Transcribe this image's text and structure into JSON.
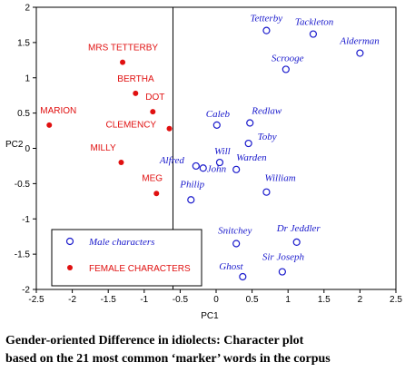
{
  "chart_data": {
    "type": "scatter",
    "xlabel": "PC1",
    "ylabel": "PC2",
    "xlim": [
      -2.5,
      2.5
    ],
    "ylim": [
      -2,
      2
    ],
    "xticks": [
      "-2.5",
      "-2",
      "-1.5",
      "-1",
      "-0.5",
      "0",
      "0.5",
      "1",
      "1.5",
      "2",
      "2.5"
    ],
    "yticks": [
      "2",
      "1.5",
      "1",
      "0.5",
      "0",
      "-0.5",
      "-1",
      "-1.5",
      "-2"
    ],
    "vline_x": -0.6,
    "colors": {
      "male": "#1a1acc",
      "female": "#e01010"
    },
    "series": [
      {
        "name": "Male characters",
        "marker": "open-circle",
        "points": [
          {
            "label": "Tetterby",
            "x": 0.7,
            "y": 1.67
          },
          {
            "label": "Tackleton",
            "x": 1.35,
            "y": 1.62
          },
          {
            "label": "Alderman",
            "x": 2.0,
            "y": 1.35
          },
          {
            "label": "Scrooge",
            "x": 0.97,
            "y": 1.12
          },
          {
            "label": "Caleb",
            "x": 0.01,
            "y": 0.33
          },
          {
            "label": "Redlaw",
            "x": 0.47,
            "y": 0.36
          },
          {
            "label": "Toby",
            "x": 0.45,
            "y": 0.07
          },
          {
            "label": "Will",
            "x": 0.05,
            "y": -0.2
          },
          {
            "label": "Warden",
            "x": 0.28,
            "y": -0.3
          },
          {
            "label": "Alfred",
            "x": -0.28,
            "y": -0.25
          },
          {
            "label": "John",
            "x": -0.18,
            "y": -0.28
          },
          {
            "label": "Philip",
            "x": -0.35,
            "y": -0.73
          },
          {
            "label": "William",
            "x": 0.7,
            "y": -0.62
          },
          {
            "label": "Snitchey",
            "x": 0.28,
            "y": -1.35
          },
          {
            "label": "Dr Jeddler",
            "x": 1.12,
            "y": -1.33
          },
          {
            "label": "Sir Joseph",
            "x": 0.92,
            "y": -1.75
          },
          {
            "label": "Ghost",
            "x": 0.37,
            "y": -1.82
          }
        ]
      },
      {
        "name": "FEMALE CHARACTERS",
        "marker": "filled-dot",
        "points": [
          {
            "label": "MRS TETTERBY",
            "x": -1.3,
            "y": 1.22
          },
          {
            "label": "BERTHA",
            "x": -1.12,
            "y": 0.78
          },
          {
            "label": "DOT",
            "x": -0.88,
            "y": 0.52
          },
          {
            "label": "MARION",
            "x": -2.32,
            "y": 0.33
          },
          {
            "label": "CLEMENCY",
            "x": -0.65,
            "y": 0.28
          },
          {
            "label": "MILLY",
            "x": -1.32,
            "y": -0.2
          },
          {
            "label": "MEG",
            "x": -0.83,
            "y": -0.64
          }
        ]
      }
    ],
    "legend": {
      "position": "bottom-left",
      "entries": [
        "Male characters",
        "FEMALE CHARACTERS"
      ]
    }
  },
  "caption": {
    "line1": "Gender-oriented Difference in idiolects: Character plot",
    "line2": "based on the 21 most common ‘marker’ words in the corpus"
  }
}
